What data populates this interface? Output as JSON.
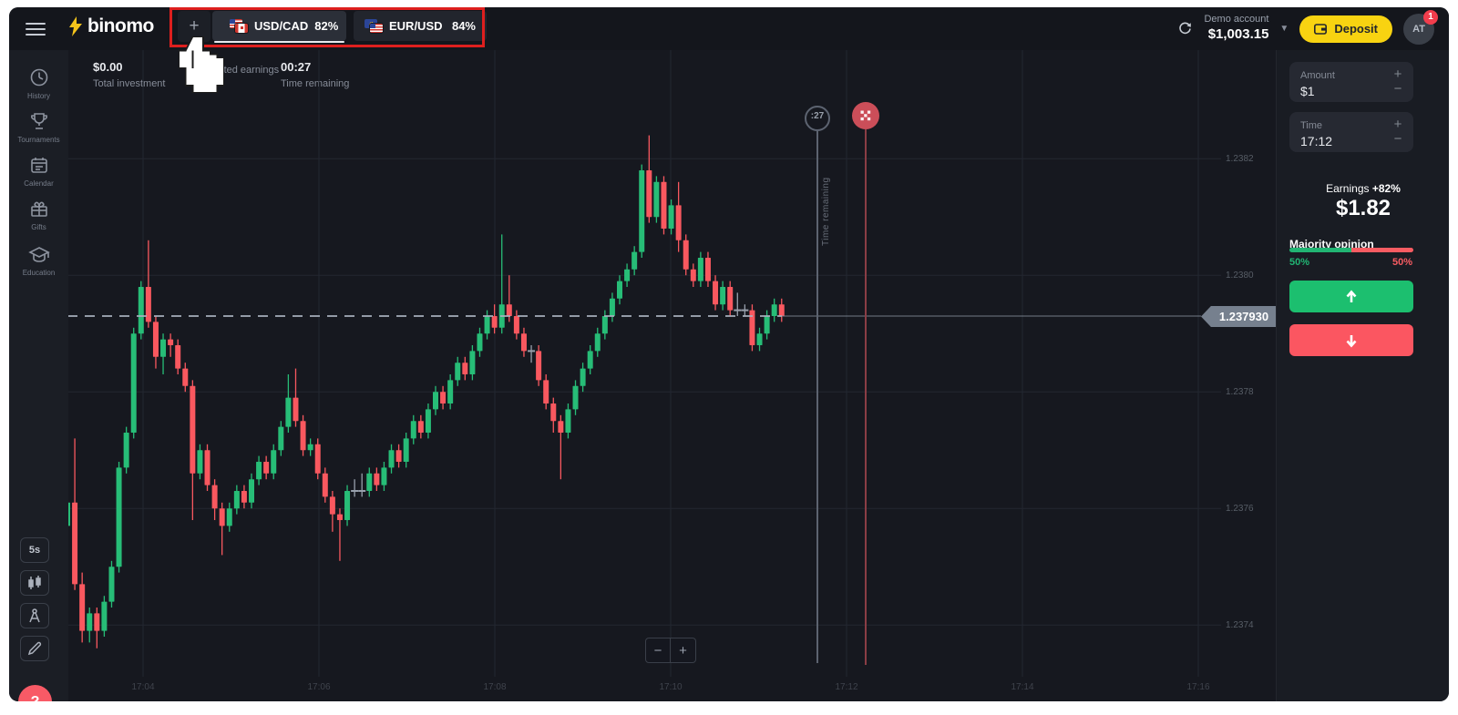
{
  "topbar": {
    "logo_text": "binomo",
    "add_tab_label": "+",
    "tabs": [
      {
        "pair": "USD/CAD",
        "payout": "82%",
        "active": true,
        "flags": "usd-cad-flags"
      },
      {
        "pair": "EUR/USD",
        "payout": "84%",
        "active": false,
        "flags": "eur-usd-flags"
      }
    ],
    "account": {
      "type": "Demo account",
      "balance": "$1,003.15"
    },
    "deposit_label": "Deposit",
    "avatar": {
      "initials": "AT",
      "badge": "1"
    }
  },
  "sidebar": {
    "items": [
      {
        "icon": "history-icon",
        "label": "History"
      },
      {
        "icon": "tournaments-icon",
        "label": "Tournaments"
      },
      {
        "icon": "calendar-icon",
        "label": "Calendar"
      },
      {
        "icon": "gifts-icon",
        "label": "Gifts"
      },
      {
        "icon": "education-icon",
        "label": "Education"
      }
    ],
    "tools": {
      "interval": "5s",
      "icons": [
        "chart-type-candles-icon",
        "indicators-icon",
        "draw-icon"
      ]
    },
    "help_label": "?"
  },
  "chart": {
    "info": [
      {
        "value": "$0.00",
        "label": "Total investment"
      },
      {
        "value": "",
        "label": "Expected earnings"
      },
      {
        "value": "00:27",
        "label": "Time remaining"
      }
    ],
    "countdown_badge": ":27",
    "time_remaining_vertical_label": "Time remaining",
    "price_tag": "1.237930",
    "zoom_out_label": "−",
    "zoom_in_label": "+"
  },
  "trade_panel": {
    "amount": {
      "label": "Amount",
      "value": "$1"
    },
    "time": {
      "label": "Time",
      "value": "17:12"
    },
    "plus_label": "+",
    "minus_label": "−",
    "earnings": {
      "label": "Earnings",
      "percent": "+82%",
      "value": "$1.82"
    },
    "majority": {
      "label": "Majority opinion",
      "up_pct": "50%",
      "down_pct": "50%",
      "up_share": 50,
      "down_share": 50
    }
  },
  "colors": {
    "candle_up": "#27bd77",
    "candle_down": "#f9585f",
    "doji": "#98a0ac",
    "button_up": "#1cbf6f",
    "button_down": "#fb5661",
    "deposit_yellow": "#f8d311",
    "annotation_red": "#de1f1e",
    "grid": "#232730",
    "price_line": "#aab2bf",
    "deadline_line": "#5c6370",
    "expiry_line": "#8a3d45",
    "expiry_circle": "#cb4e59",
    "tag_bg": "#76808e"
  },
  "chart_data": {
    "type": "candlestick",
    "pair": "USD/CAD",
    "candle_interval": "5s",
    "current_price": 1.23793,
    "price_gridlines": [
      1.2382,
      1.238,
      1.2378,
      1.2376,
      1.2374
    ],
    "price_tick_labels": [
      "1.2382",
      "1.2380",
      "1.2378",
      "1.2376",
      "1.2374"
    ],
    "time_tick_labels": [
      "17:04",
      "17:06",
      "17:08",
      "17:10",
      "17:12",
      "17:14",
      "17:16"
    ],
    "markers": {
      "purchase_deadline_seconds": 27,
      "expiration_time": "17:12",
      "expiration_icon": "checkered-flag-icon"
    },
    "candles": [
      [
        1.23757,
        1.23762,
        1.23756,
        1.23761
      ],
      [
        1.23761,
        1.23772,
        1.23746,
        1.23747
      ],
      [
        1.23747,
        1.23749,
        1.23737,
        1.23739
      ],
      [
        1.23739,
        1.23743,
        1.23737,
        1.23742
      ],
      [
        1.23742,
        1.23743,
        1.23736,
        1.23739
      ],
      [
        1.23739,
        1.23745,
        1.23738,
        1.23744
      ],
      [
        1.23744,
        1.23751,
        1.23743,
        1.2375
      ],
      [
        1.2375,
        1.23768,
        1.23749,
        1.23767
      ],
      [
        1.23767,
        1.23774,
        1.23766,
        1.23773
      ],
      [
        1.23773,
        1.23791,
        1.23772,
        1.2379
      ],
      [
        1.2379,
        1.23799,
        1.23789,
        1.23798
      ],
      [
        1.23798,
        1.23806,
        1.23791,
        1.23792
      ],
      [
        1.23792,
        1.23793,
        1.23784,
        1.23786
      ],
      [
        1.23786,
        1.2379,
        1.23783,
        1.23789
      ],
      [
        1.23789,
        1.2379,
        1.23786,
        1.23788
      ],
      [
        1.23788,
        1.23789,
        1.23783,
        1.23784
      ],
      [
        1.23784,
        1.23785,
        1.2378,
        1.23781
      ],
      [
        1.23781,
        1.23782,
        1.23758,
        1.23766
      ],
      [
        1.23766,
        1.23771,
        1.23765,
        1.2377
      ],
      [
        1.2377,
        1.23771,
        1.23763,
        1.23764
      ],
      [
        1.23764,
        1.23765,
        1.23758,
        1.2376
      ],
      [
        1.2376,
        1.23761,
        1.23752,
        1.23757
      ],
      [
        1.23757,
        1.23761,
        1.23756,
        1.2376
      ],
      [
        1.2376,
        1.23764,
        1.23759,
        1.23763
      ],
      [
        1.23763,
        1.23764,
        1.2376,
        1.23761
      ],
      [
        1.23761,
        1.23766,
        1.2376,
        1.23765
      ],
      [
        1.23765,
        1.23769,
        1.23764,
        1.23768
      ],
      [
        1.23768,
        1.23769,
        1.23765,
        1.23766
      ],
      [
        1.23766,
        1.23771,
        1.23765,
        1.2377
      ],
      [
        1.2377,
        1.23775,
        1.23769,
        1.23774
      ],
      [
        1.23774,
        1.23783,
        1.23773,
        1.23779
      ],
      [
        1.23779,
        1.23784,
        1.23774,
        1.23775
      ],
      [
        1.23775,
        1.23776,
        1.23769,
        1.2377
      ],
      [
        1.2377,
        1.23772,
        1.23769,
        1.23771
      ],
      [
        1.23771,
        1.23772,
        1.23765,
        1.23766
      ],
      [
        1.23766,
        1.23767,
        1.23761,
        1.23762
      ],
      [
        1.23762,
        1.23763,
        1.23756,
        1.23759
      ],
      [
        1.23759,
        1.2376,
        1.23751,
        1.23758
      ],
      [
        1.23758,
        1.23764,
        1.23757,
        1.23763
      ],
      [
        1.23763,
        1.23765,
        1.23762,
        1.23763
      ],
      [
        1.23763,
        1.23766,
        1.23762,
        1.23763
      ],
      [
        1.23763,
        1.23767,
        1.23762,
        1.23766
      ],
      [
        1.23766,
        1.23767,
        1.23763,
        1.23764
      ],
      [
        1.23764,
        1.23768,
        1.23763,
        1.23767
      ],
      [
        1.23767,
        1.23771,
        1.23766,
        1.2377
      ],
      [
        1.2377,
        1.23771,
        1.23767,
        1.23768
      ],
      [
        1.23768,
        1.23773,
        1.23767,
        1.23772
      ],
      [
        1.23772,
        1.23776,
        1.23771,
        1.23775
      ],
      [
        1.23775,
        1.23776,
        1.23772,
        1.23773
      ],
      [
        1.23773,
        1.23778,
        1.23772,
        1.23777
      ],
      [
        1.23777,
        1.23781,
        1.23776,
        1.2378
      ],
      [
        1.2378,
        1.23781,
        1.23777,
        1.23778
      ],
      [
        1.23778,
        1.23783,
        1.23777,
        1.23782
      ],
      [
        1.23782,
        1.23786,
        1.23781,
        1.23785
      ],
      [
        1.23785,
        1.23786,
        1.23782,
        1.23783
      ],
      [
        1.23783,
        1.23788,
        1.23782,
        1.23787
      ],
      [
        1.23787,
        1.23791,
        1.23786,
        1.2379
      ],
      [
        1.2379,
        1.23794,
        1.23789,
        1.23793
      ],
      [
        1.23793,
        1.23795,
        1.2379,
        1.23791
      ],
      [
        1.23791,
        1.23807,
        1.2379,
        1.23795
      ],
      [
        1.23795,
        1.238,
        1.23792,
        1.23793
      ],
      [
        1.23793,
        1.23794,
        1.23789,
        1.2379
      ],
      [
        1.2379,
        1.23791,
        1.23786,
        1.23787
      ],
      [
        1.23787,
        1.23788,
        1.23785,
        1.23787
      ],
      [
        1.23787,
        1.23788,
        1.23781,
        1.23782
      ],
      [
        1.23782,
        1.23783,
        1.23777,
        1.23778
      ],
      [
        1.23778,
        1.23779,
        1.23773,
        1.23775
      ],
      [
        1.23775,
        1.23776,
        1.23765,
        1.23773
      ],
      [
        1.23773,
        1.23778,
        1.23772,
        1.23777
      ],
      [
        1.23777,
        1.23782,
        1.23776,
        1.23781
      ],
      [
        1.23781,
        1.23785,
        1.2378,
        1.23784
      ],
      [
        1.23784,
        1.23788,
        1.23783,
        1.23787
      ],
      [
        1.23787,
        1.23791,
        1.23786,
        1.2379
      ],
      [
        1.2379,
        1.23794,
        1.23789,
        1.23793
      ],
      [
        1.23793,
        1.23797,
        1.23792,
        1.23796
      ],
      [
        1.23796,
        1.238,
        1.23795,
        1.23799
      ],
      [
        1.23799,
        1.23802,
        1.23798,
        1.23801
      ],
      [
        1.23801,
        1.23805,
        1.238,
        1.23804
      ],
      [
        1.23804,
        1.23819,
        1.23803,
        1.23818
      ],
      [
        1.23818,
        1.23824,
        1.23809,
        1.2381
      ],
      [
        1.2381,
        1.23817,
        1.23809,
        1.23816
      ],
      [
        1.23816,
        1.23817,
        1.23807,
        1.23808
      ],
      [
        1.23808,
        1.23813,
        1.23807,
        1.23812
      ],
      [
        1.23812,
        1.23816,
        1.23804,
        1.23806
      ],
      [
        1.23806,
        1.23807,
        1.238,
        1.23801
      ],
      [
        1.23801,
        1.23802,
        1.23798,
        1.23799
      ],
      [
        1.23799,
        1.23804,
        1.23798,
        1.23803
      ],
      [
        1.23803,
        1.23804,
        1.23798,
        1.23799
      ],
      [
        1.23799,
        1.238,
        1.23794,
        1.23795
      ],
      [
        1.23795,
        1.23799,
        1.23794,
        1.23798
      ],
      [
        1.23798,
        1.23799,
        1.23793,
        1.23794
      ],
      [
        1.23794,
        1.23797,
        1.23793,
        1.23794
      ],
      [
        1.23794,
        1.23795,
        1.23793,
        1.23794
      ],
      [
        1.23794,
        1.23795,
        1.23787,
        1.23788
      ],
      [
        1.23788,
        1.23791,
        1.23787,
        1.2379
      ],
      [
        1.2379,
        1.23794,
        1.23789,
        1.23793
      ],
      [
        1.23793,
        1.23796,
        1.23792,
        1.23795
      ],
      [
        1.23795,
        1.23796,
        1.23792,
        1.23793
      ]
    ]
  }
}
